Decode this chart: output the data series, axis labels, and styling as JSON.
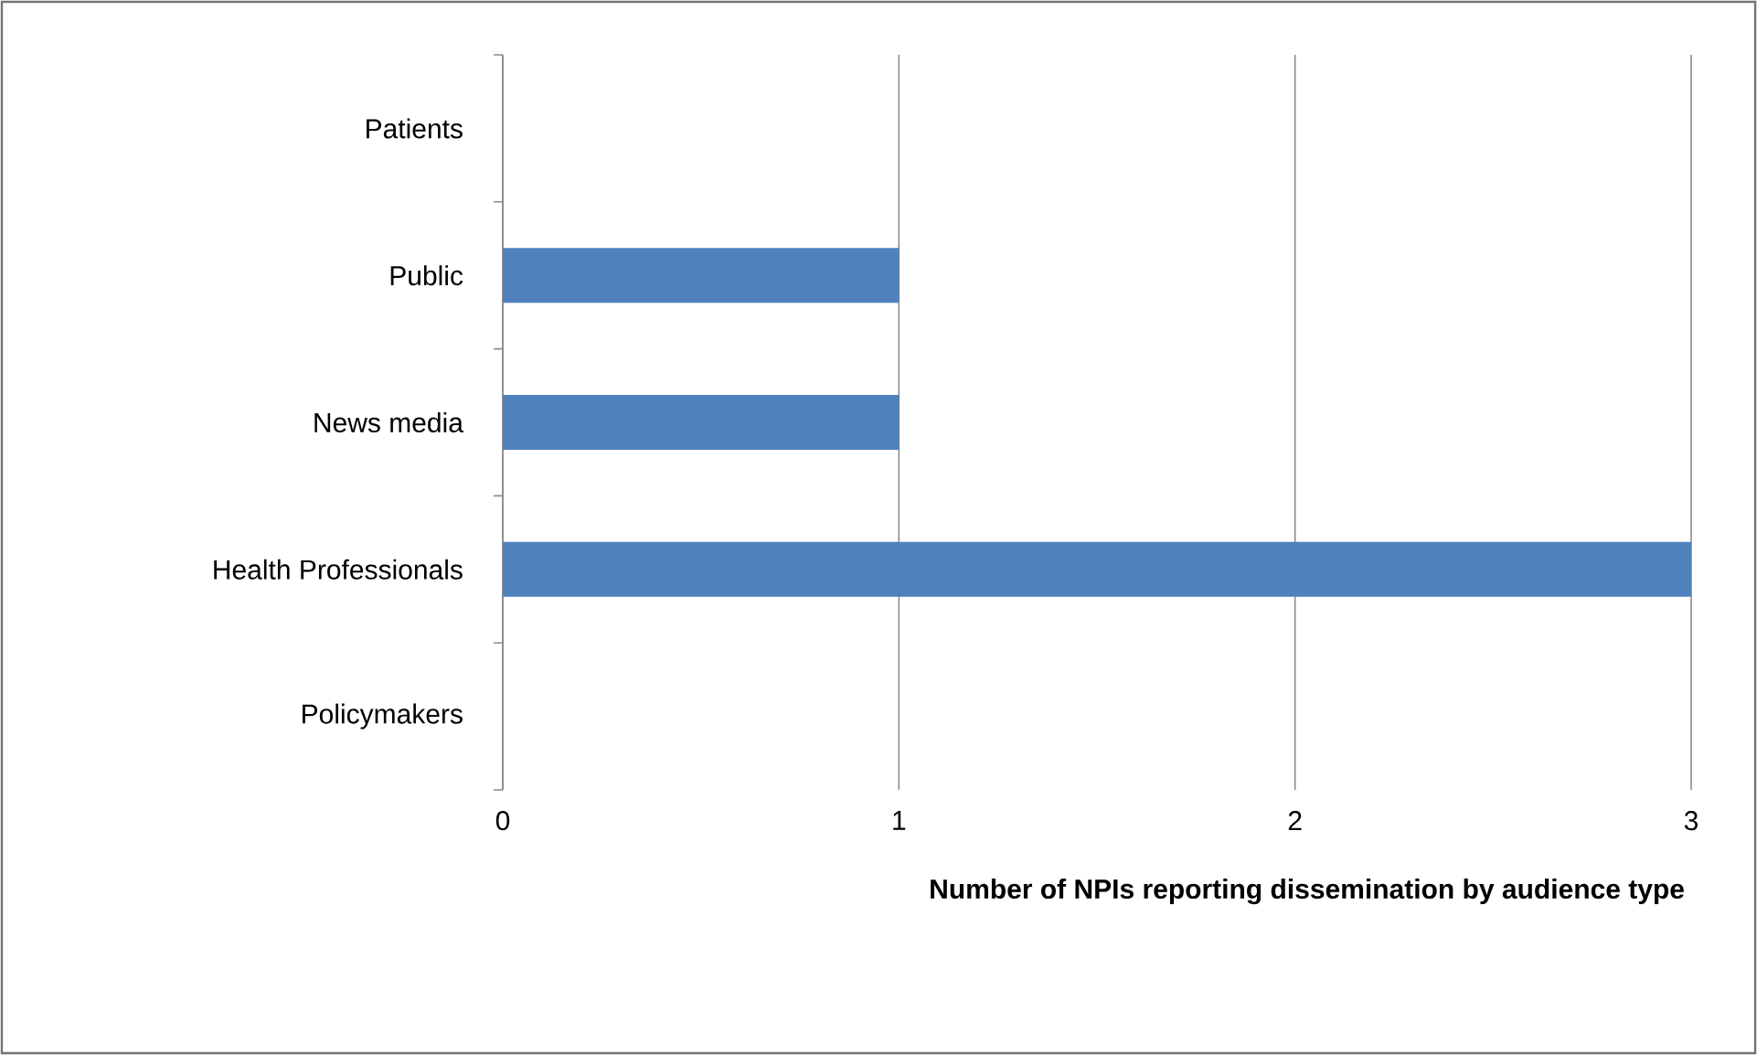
{
  "chart_data": {
    "type": "bar",
    "orientation": "horizontal",
    "xlabel": "Number of NPIs reporting dissemination by audience type",
    "categories": [
      "Patients",
      "Public",
      "News media",
      "Health Professionals",
      "Policymakers"
    ],
    "values": [
      0,
      1,
      1,
      3,
      0
    ],
    "color": "#4f81bd",
    "xlim": [
      0,
      3
    ],
    "xticks": [
      0,
      1,
      2,
      3
    ],
    "grid": "x"
  }
}
